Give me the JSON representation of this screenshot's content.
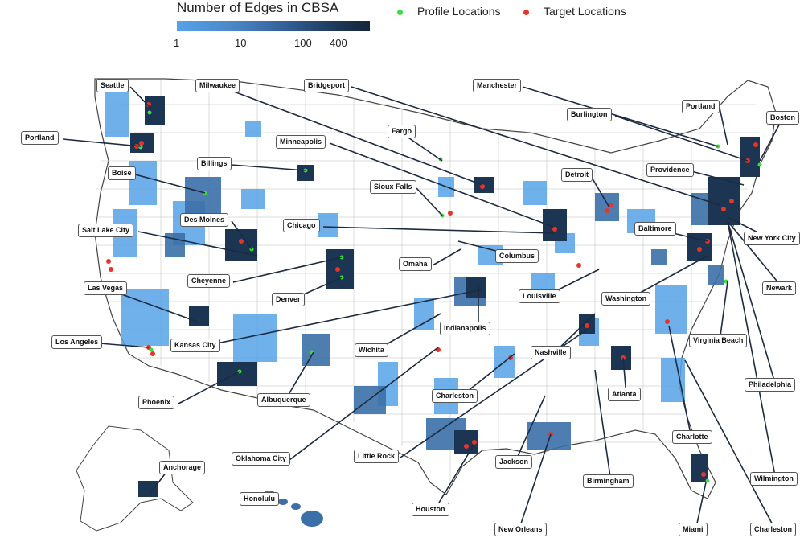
{
  "legend": {
    "title": "Number of Edges in CBSA",
    "ticks": [
      "1",
      "10",
      "100",
      "400"
    ],
    "profile_label": "Profile Locations",
    "target_label": "Target Locations",
    "profile_color": "#3ddc3d",
    "target_color": "#e8332a",
    "scale_colors": [
      "#56a3e8",
      "#14263b"
    ]
  },
  "cities": {
    "seattle": "Seattle",
    "milwaukee": "Milwaukee",
    "bridgeport": "Bridgeport",
    "manchester": "Manchester",
    "burlington": "Burlington",
    "portland_me": "Portland",
    "boston": "Boston",
    "portland_or": "Portland",
    "fargo": "Fargo",
    "minneapolis": "Minneapolis",
    "billings": "Billings",
    "boise": "Boise",
    "detroit": "Detroit",
    "providence": "Providence",
    "sioux_falls": "Sioux Falls",
    "des_moines": "Des Moines",
    "chicago": "Chicago",
    "salt_lake_city": "Salt Lake City",
    "baltimore": "Baltimore",
    "new_york_city": "New York City",
    "omaha": "Omaha",
    "columbus": "Columbus",
    "cheyenne": "Cheyenne",
    "newark": "Newark",
    "las_vegas": "Las Vegas",
    "denver": "Denver",
    "louisville": "Louisville",
    "washington": "Washington",
    "indianapolis": "Indianapolis",
    "los_angeles": "Los Angeles",
    "kansas_city": "Kansas City",
    "wichita": "Wichita",
    "nashville": "Nashville",
    "virginia_beach": "Virginia Beach",
    "phoenix": "Phoenix",
    "albuquerque": "Albuquerque",
    "charleston_wv": "Charleston",
    "atlanta": "Atlanta",
    "philadelphia": "Philadelphia",
    "charlotte": "Charlotte",
    "oklahoma_city": "Oklahoma City",
    "little_rock": "Little Rock",
    "jackson": "Jackson",
    "anchorage": "Anchorage",
    "birmingham": "Birmingham",
    "wilmington": "Wilmington",
    "honolulu": "Honolulu",
    "houston": "Houston",
    "new_orleans": "New Orleans",
    "miami": "Miami",
    "charleston_sc": "Charleston"
  }
}
